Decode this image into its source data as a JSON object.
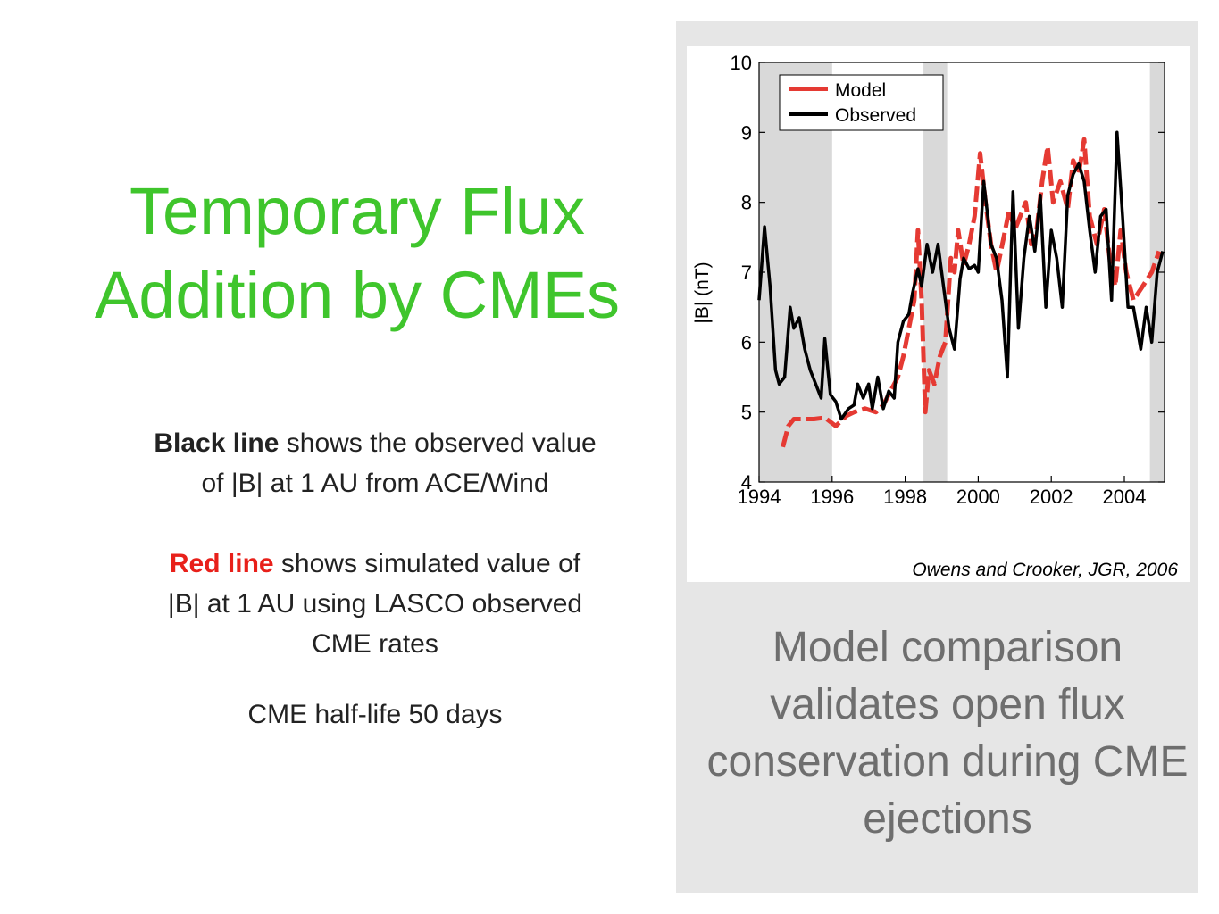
{
  "slide": {
    "title_line1": "Temporary Flux",
    "title_line2": "Addition by CMEs",
    "black_bold": "Black line",
    "black_rest": " shows the observed value",
    "black_line2": "of |B| at 1 AU from ACE/Wind",
    "red_bold": "Red line",
    "red_rest": " shows simulated value of",
    "red_line2": "|B| at 1 AU using LASCO observed",
    "red_line3": "CME rates",
    "halflife": "CME half-life 50 days",
    "caption_lines": [
      "Model comparison",
      "validates open flux",
      "conservation during CME",
      "ejections"
    ],
    "citation": "Owens and Crooker, JGR, 2006"
  },
  "colors": {
    "title": "#3fc52c",
    "red_text": "#e8201a",
    "panel": "#e6e6e6",
    "model": "#e53a33",
    "observed": "#000000",
    "shade": "#d9d9d9"
  },
  "chart_data": {
    "type": "line",
    "ylabel": "|B| (nT)",
    "xlabel": "",
    "xlim": [
      1994,
      2005.1
    ],
    "ylim": [
      4,
      10
    ],
    "xticks": [
      1994,
      1996,
      1998,
      2000,
      2002,
      2004
    ],
    "yticks": [
      4,
      5,
      6,
      7,
      8,
      9,
      10
    ],
    "legend_position": "top-left",
    "shaded_intervals": [
      [
        1994,
        1996
      ],
      [
        1998.5,
        1999.15
      ],
      [
        2004.7,
        2005.1
      ]
    ],
    "series": [
      {
        "name": "Model",
        "color": "#e53a33",
        "dashed_segments": true,
        "points": [
          [
            1994.65,
            4.5
          ],
          [
            1994.8,
            4.8
          ],
          [
            1994.95,
            4.9
          ],
          [
            1995.2,
            4.9
          ],
          [
            1995.5,
            4.9
          ],
          [
            1995.8,
            4.92
          ],
          [
            1996.1,
            4.8
          ],
          [
            1996.4,
            4.95
          ],
          [
            1996.6,
            5.0
          ],
          [
            1996.9,
            5.05
          ],
          [
            1997.2,
            5.0
          ],
          [
            1997.4,
            5.1
          ],
          [
            1997.6,
            5.3
          ],
          [
            1997.8,
            5.5
          ],
          [
            1997.95,
            5.8
          ],
          [
            1998.1,
            6.2
          ],
          [
            1998.25,
            6.6
          ],
          [
            1998.35,
            7.6
          ],
          [
            1998.45,
            6.6
          ],
          [
            1998.55,
            5.0
          ],
          [
            1998.65,
            5.6
          ],
          [
            1998.8,
            5.4
          ],
          [
            1998.95,
            5.8
          ],
          [
            1999.1,
            6.0
          ],
          [
            1999.25,
            7.2
          ],
          [
            1999.35,
            7.0
          ],
          [
            1999.45,
            7.6
          ],
          [
            1999.6,
            7.1
          ],
          [
            1999.75,
            7.4
          ],
          [
            1999.9,
            7.8
          ],
          [
            2000.05,
            8.7
          ],
          [
            2000.2,
            8.0
          ],
          [
            2000.35,
            7.4
          ],
          [
            2000.5,
            7.0
          ],
          [
            2000.7,
            7.5
          ],
          [
            2000.85,
            7.9
          ],
          [
            2001.0,
            7.6
          ],
          [
            2001.15,
            7.8
          ],
          [
            2001.3,
            8.0
          ],
          [
            2001.45,
            7.4
          ],
          [
            2001.6,
            7.6
          ],
          [
            2001.75,
            8.3
          ],
          [
            2001.9,
            8.8
          ],
          [
            2002.05,
            8.0
          ],
          [
            2002.25,
            8.3
          ],
          [
            2002.45,
            7.9
          ],
          [
            2002.6,
            8.6
          ],
          [
            2002.75,
            8.4
          ],
          [
            2002.9,
            8.9
          ],
          [
            2003.05,
            7.8
          ],
          [
            2003.25,
            7.4
          ],
          [
            2003.45,
            7.9
          ],
          [
            2003.6,
            7.2
          ],
          [
            2003.75,
            6.8
          ],
          [
            2003.9,
            7.6
          ],
          [
            2004.05,
            7.0
          ],
          [
            2004.25,
            6.6
          ],
          [
            2004.5,
            6.8
          ],
          [
            2004.75,
            7.0
          ],
          [
            2004.95,
            7.3
          ]
        ]
      },
      {
        "name": "Observed",
        "color": "#000000",
        "points": [
          [
            1994.0,
            6.6
          ],
          [
            1994.15,
            7.65
          ],
          [
            1994.3,
            6.8
          ],
          [
            1994.45,
            5.6
          ],
          [
            1994.55,
            5.4
          ],
          [
            1994.7,
            5.5
          ],
          [
            1994.85,
            6.5
          ],
          [
            1994.95,
            6.2
          ],
          [
            1995.1,
            6.35
          ],
          [
            1995.25,
            5.9
          ],
          [
            1995.4,
            5.6
          ],
          [
            1995.55,
            5.4
          ],
          [
            1995.7,
            5.2
          ],
          [
            1995.8,
            6.05
          ],
          [
            1995.95,
            5.25
          ],
          [
            1996.1,
            5.15
          ],
          [
            1996.25,
            4.9
          ],
          [
            1996.45,
            5.05
          ],
          [
            1996.6,
            5.1
          ],
          [
            1996.7,
            5.4
          ],
          [
            1996.85,
            5.2
          ],
          [
            1997.0,
            5.4
          ],
          [
            1997.1,
            5.05
          ],
          [
            1997.25,
            5.5
          ],
          [
            1997.4,
            5.05
          ],
          [
            1997.55,
            5.3
          ],
          [
            1997.7,
            5.2
          ],
          [
            1997.8,
            6.0
          ],
          [
            1997.95,
            6.3
          ],
          [
            1998.1,
            6.4
          ],
          [
            1998.2,
            6.7
          ],
          [
            1998.35,
            7.05
          ],
          [
            1998.45,
            6.8
          ],
          [
            1998.6,
            7.4
          ],
          [
            1998.75,
            7.0
          ],
          [
            1998.9,
            7.4
          ],
          [
            1999.05,
            6.8
          ],
          [
            1999.2,
            6.2
          ],
          [
            1999.35,
            5.9
          ],
          [
            1999.5,
            6.9
          ],
          [
            1999.6,
            7.2
          ],
          [
            1999.75,
            7.05
          ],
          [
            1999.9,
            7.1
          ],
          [
            2000.0,
            7.0
          ],
          [
            2000.15,
            8.3
          ],
          [
            2000.35,
            7.4
          ],
          [
            2000.5,
            7.2
          ],
          [
            2000.65,
            6.6
          ],
          [
            2000.8,
            5.5
          ],
          [
            2000.95,
            8.15
          ],
          [
            2001.1,
            6.2
          ],
          [
            2001.25,
            7.2
          ],
          [
            2001.4,
            7.8
          ],
          [
            2001.55,
            7.3
          ],
          [
            2001.7,
            8.1
          ],
          [
            2001.85,
            6.5
          ],
          [
            2002.0,
            7.6
          ],
          [
            2002.15,
            7.2
          ],
          [
            2002.3,
            6.5
          ],
          [
            2002.45,
            8.1
          ],
          [
            2002.6,
            8.4
          ],
          [
            2002.75,
            8.55
          ],
          [
            2002.9,
            8.3
          ],
          [
            2003.05,
            7.6
          ],
          [
            2003.2,
            7.0
          ],
          [
            2003.35,
            7.8
          ],
          [
            2003.5,
            7.9
          ],
          [
            2003.65,
            6.6
          ],
          [
            2003.8,
            9.0
          ],
          [
            2003.95,
            7.8
          ],
          [
            2004.1,
            6.5
          ],
          [
            2004.25,
            6.5
          ],
          [
            2004.45,
            5.9
          ],
          [
            2004.6,
            6.5
          ],
          [
            2004.75,
            6.0
          ],
          [
            2004.9,
            7.0
          ],
          [
            2005.05,
            7.3
          ]
        ]
      }
    ]
  }
}
